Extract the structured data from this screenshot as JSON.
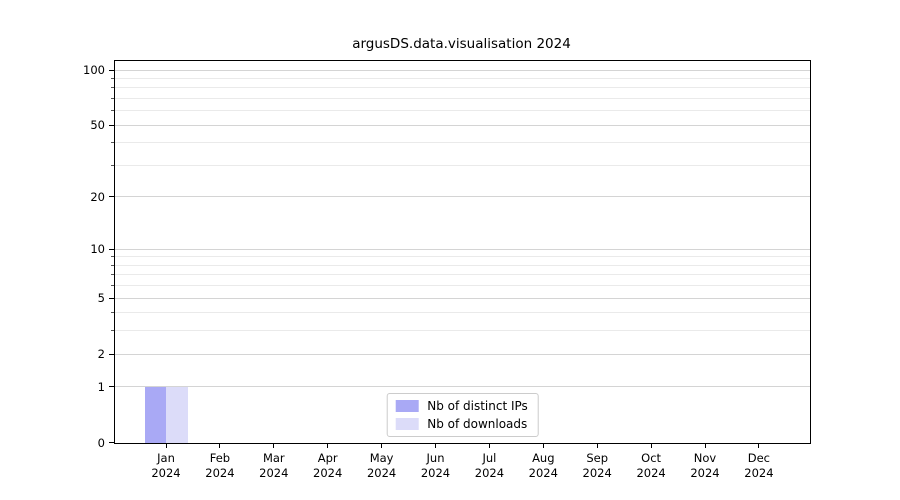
{
  "title": "argusDS.data.visualisation 2024",
  "chart_data": {
    "type": "bar",
    "title": "argusDS.data.visualisation 2024",
    "xlabel": "",
    "ylabel": "",
    "categories": [
      "Jan 2024",
      "Feb 2024",
      "Mar 2024",
      "Apr 2024",
      "May 2024",
      "Jun 2024",
      "Jul 2024",
      "Aug 2024",
      "Sep 2024",
      "Oct 2024",
      "Nov 2024",
      "Dec 2024"
    ],
    "series": [
      {
        "name": "Nb of distinct IPs",
        "color": "#a9a9f5",
        "values": [
          1,
          0,
          0,
          0,
          0,
          0,
          0,
          0,
          0,
          0,
          0,
          0
        ]
      },
      {
        "name": "Nb of downloads",
        "color": "#dcdcf9",
        "values": [
          1,
          0,
          0,
          0,
          0,
          0,
          0,
          0,
          0,
          0,
          0,
          0
        ]
      }
    ],
    "yscale": "log1p",
    "ylim": [
      0,
      112
    ],
    "y_major_ticks": [
      100,
      50,
      20,
      10,
      5,
      2,
      1,
      0
    ],
    "y_minor_ticks": [
      90,
      80,
      70,
      60,
      40,
      30,
      9,
      8,
      7,
      6,
      4,
      3
    ],
    "grid": "on",
    "legend_position": "lower center",
    "colors": {
      "grid_major": "#d4d4d4",
      "grid_minor": "#eaeaea",
      "spine": "#000000",
      "legend_border": "#cccccc"
    }
  }
}
